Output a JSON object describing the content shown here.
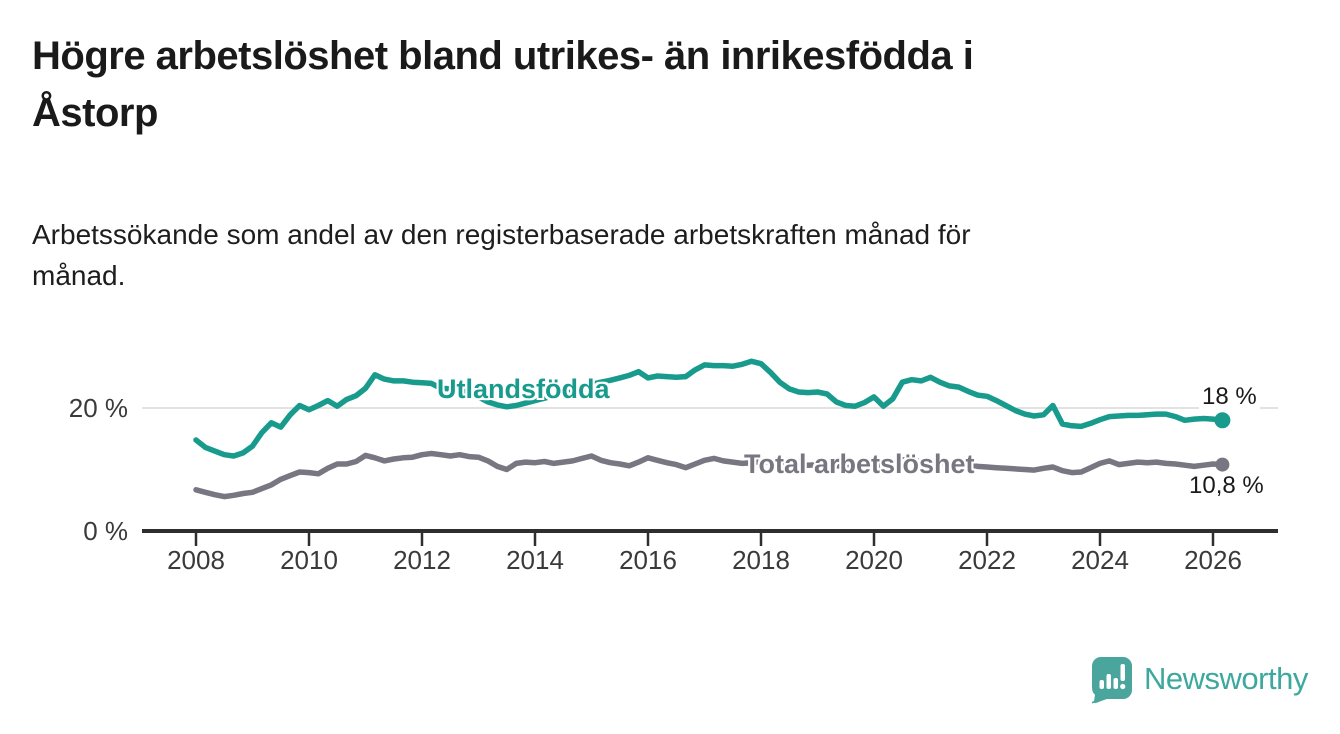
{
  "page": {
    "title_lines": [
      "Högre arbetslöshet bland utrikes- än inrikesfödda i",
      "Åstorp"
    ],
    "subtitle_lines": [
      "Arbetssökande som andel av den registerbaserade arbetskraften månad för",
      "månad."
    ]
  },
  "branding": {
    "logo_text": "Newsworthy",
    "logo_color": "#3da89e"
  },
  "colors": {
    "title_text": "#1a1a1a",
    "axis_text": "#3a3a3a",
    "axis_line": "#2e2e2e",
    "gridline": "#d9d9d9",
    "series_foreign_born": "#189b8d",
    "series_total": "#787680"
  },
  "chart_data": {
    "type": "line",
    "title": "Högre arbetslöshet bland utrikes- än inrikesfödda i Åstorp",
    "subtitle": "Arbetssökande som andel av den registerbaserade arbetskraften månad för månad.",
    "unit": "%",
    "grid": "horizontal-only",
    "legend_position": "inline-on-line",
    "x_axis": {
      "tick_labels": [
        "2008",
        "2010",
        "2012",
        "2014",
        "2016",
        "2018",
        "2020",
        "2022",
        "2024",
        "2026"
      ]
    },
    "y_axis": {
      "ticks": [
        {
          "value": 0,
          "label": "0 %"
        },
        {
          "value": 20,
          "label": "20 %"
        }
      ],
      "range": [
        0,
        30
      ]
    },
    "series": [
      {
        "name": "Total arbetslöshet",
        "label": "Total arbetslöshet",
        "color": "#787680",
        "end_label": "10,8 %",
        "end_value": 10.8,
        "start_year": 2008.0,
        "step_years": 0.16667,
        "values": [
          6.7,
          6.3,
          5.9,
          5.6,
          5.8,
          6.1,
          6.3,
          6.9,
          7.5,
          8.4,
          9.0,
          9.6,
          9.5,
          9.3,
          10.2,
          10.9,
          10.9,
          11.3,
          12.3,
          11.9,
          11.4,
          11.7,
          11.9,
          12.0,
          12.4,
          12.6,
          12.4,
          12.2,
          12.4,
          12.1,
          12.0,
          11.4,
          10.5,
          10.0,
          11.0,
          11.2,
          11.1,
          11.3,
          11.0,
          11.2,
          11.4,
          11.8,
          12.2,
          11.5,
          11.1,
          10.9,
          10.6,
          11.2,
          11.9,
          11.5,
          11.1,
          10.8,
          10.3,
          10.9,
          11.5,
          11.8,
          11.4,
          11.2,
          11.0,
          11.1,
          11.3,
          11.2,
          11.0,
          10.9,
          10.8,
          10.7,
          10.8,
          10.7,
          10.6,
          10.5,
          10.4,
          10.5,
          10.7,
          10.5,
          11.2,
          11.6,
          11.5,
          11.3,
          11.4,
          11.2,
          11.0,
          10.9,
          10.7,
          10.5,
          10.4,
          10.3,
          10.2,
          10.1,
          10.0,
          9.9,
          10.2,
          10.4,
          9.8,
          9.5,
          9.6,
          10.3,
          11.0,
          11.4,
          10.8,
          11.0,
          11.2,
          11.1,
          11.2,
          11.0,
          10.9,
          10.7,
          10.5,
          10.7,
          10.9,
          10.8
        ]
      },
      {
        "name": "Utlandsfödda",
        "label": "Utlandsfödda",
        "color": "#189b8d",
        "end_label": "18 %",
        "end_value": 18,
        "start_year": 2008.0,
        "step_years": 0.16667,
        "values": [
          14.8,
          13.6,
          13.0,
          12.4,
          12.2,
          12.7,
          13.8,
          16.0,
          17.6,
          16.9,
          18.9,
          20.4,
          19.7,
          20.4,
          21.2,
          20.3,
          21.4,
          22.0,
          23.2,
          25.4,
          24.7,
          24.4,
          24.4,
          24.2,
          24.1,
          24.0,
          23.2,
          23.1,
          23.0,
          22.3,
          21.8,
          21.0,
          20.5,
          20.2,
          20.4,
          20.8,
          21.2,
          21.6,
          22.0,
          22.4,
          22.9,
          23.3,
          23.8,
          24.2,
          24.5,
          24.9,
          25.3,
          25.9,
          24.9,
          25.2,
          25.1,
          25.0,
          25.1,
          26.2,
          27.0,
          26.9,
          26.9,
          26.8,
          27.1,
          27.6,
          27.2,
          25.8,
          24.2,
          23.1,
          22.6,
          22.5,
          22.6,
          22.3,
          21.0,
          20.4,
          20.3,
          20.9,
          21.8,
          20.3,
          21.5,
          24.2,
          24.6,
          24.4,
          25.0,
          24.2,
          23.6,
          23.4,
          22.7,
          22.1,
          21.9,
          21.2,
          20.4,
          19.6,
          19.0,
          18.7,
          18.9,
          20.4,
          17.4,
          17.1,
          17.0,
          17.5,
          18.1,
          18.6,
          18.7,
          18.8,
          18.8,
          18.9,
          19.0,
          19.0,
          18.6,
          18.0,
          18.2,
          18.3,
          18.2,
          18.0
        ]
      }
    ]
  }
}
